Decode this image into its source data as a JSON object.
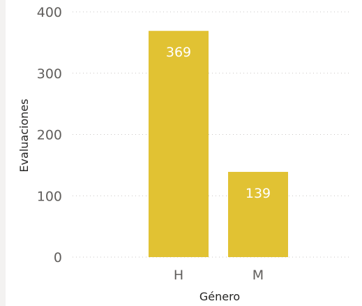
{
  "chart_data": {
    "type": "bar",
    "categories": [
      "H",
      "M"
    ],
    "values": [
      369,
      139
    ],
    "data_labels": [
      "369",
      "139"
    ],
    "xlabel": "Género",
    "ylabel": "Evaluaciones",
    "ylim": [
      0,
      400
    ],
    "yticks": [
      0,
      100,
      200,
      300,
      400
    ],
    "ytick_labels": [
      "0",
      "100",
      "200",
      "300",
      "400"
    ],
    "grid": true,
    "bar_color": "#E1C233",
    "label_color": "#FFFFFF",
    "text_color": "#252423",
    "tick_color": "#605E5C",
    "grid_color": "#C8C6C4"
  }
}
